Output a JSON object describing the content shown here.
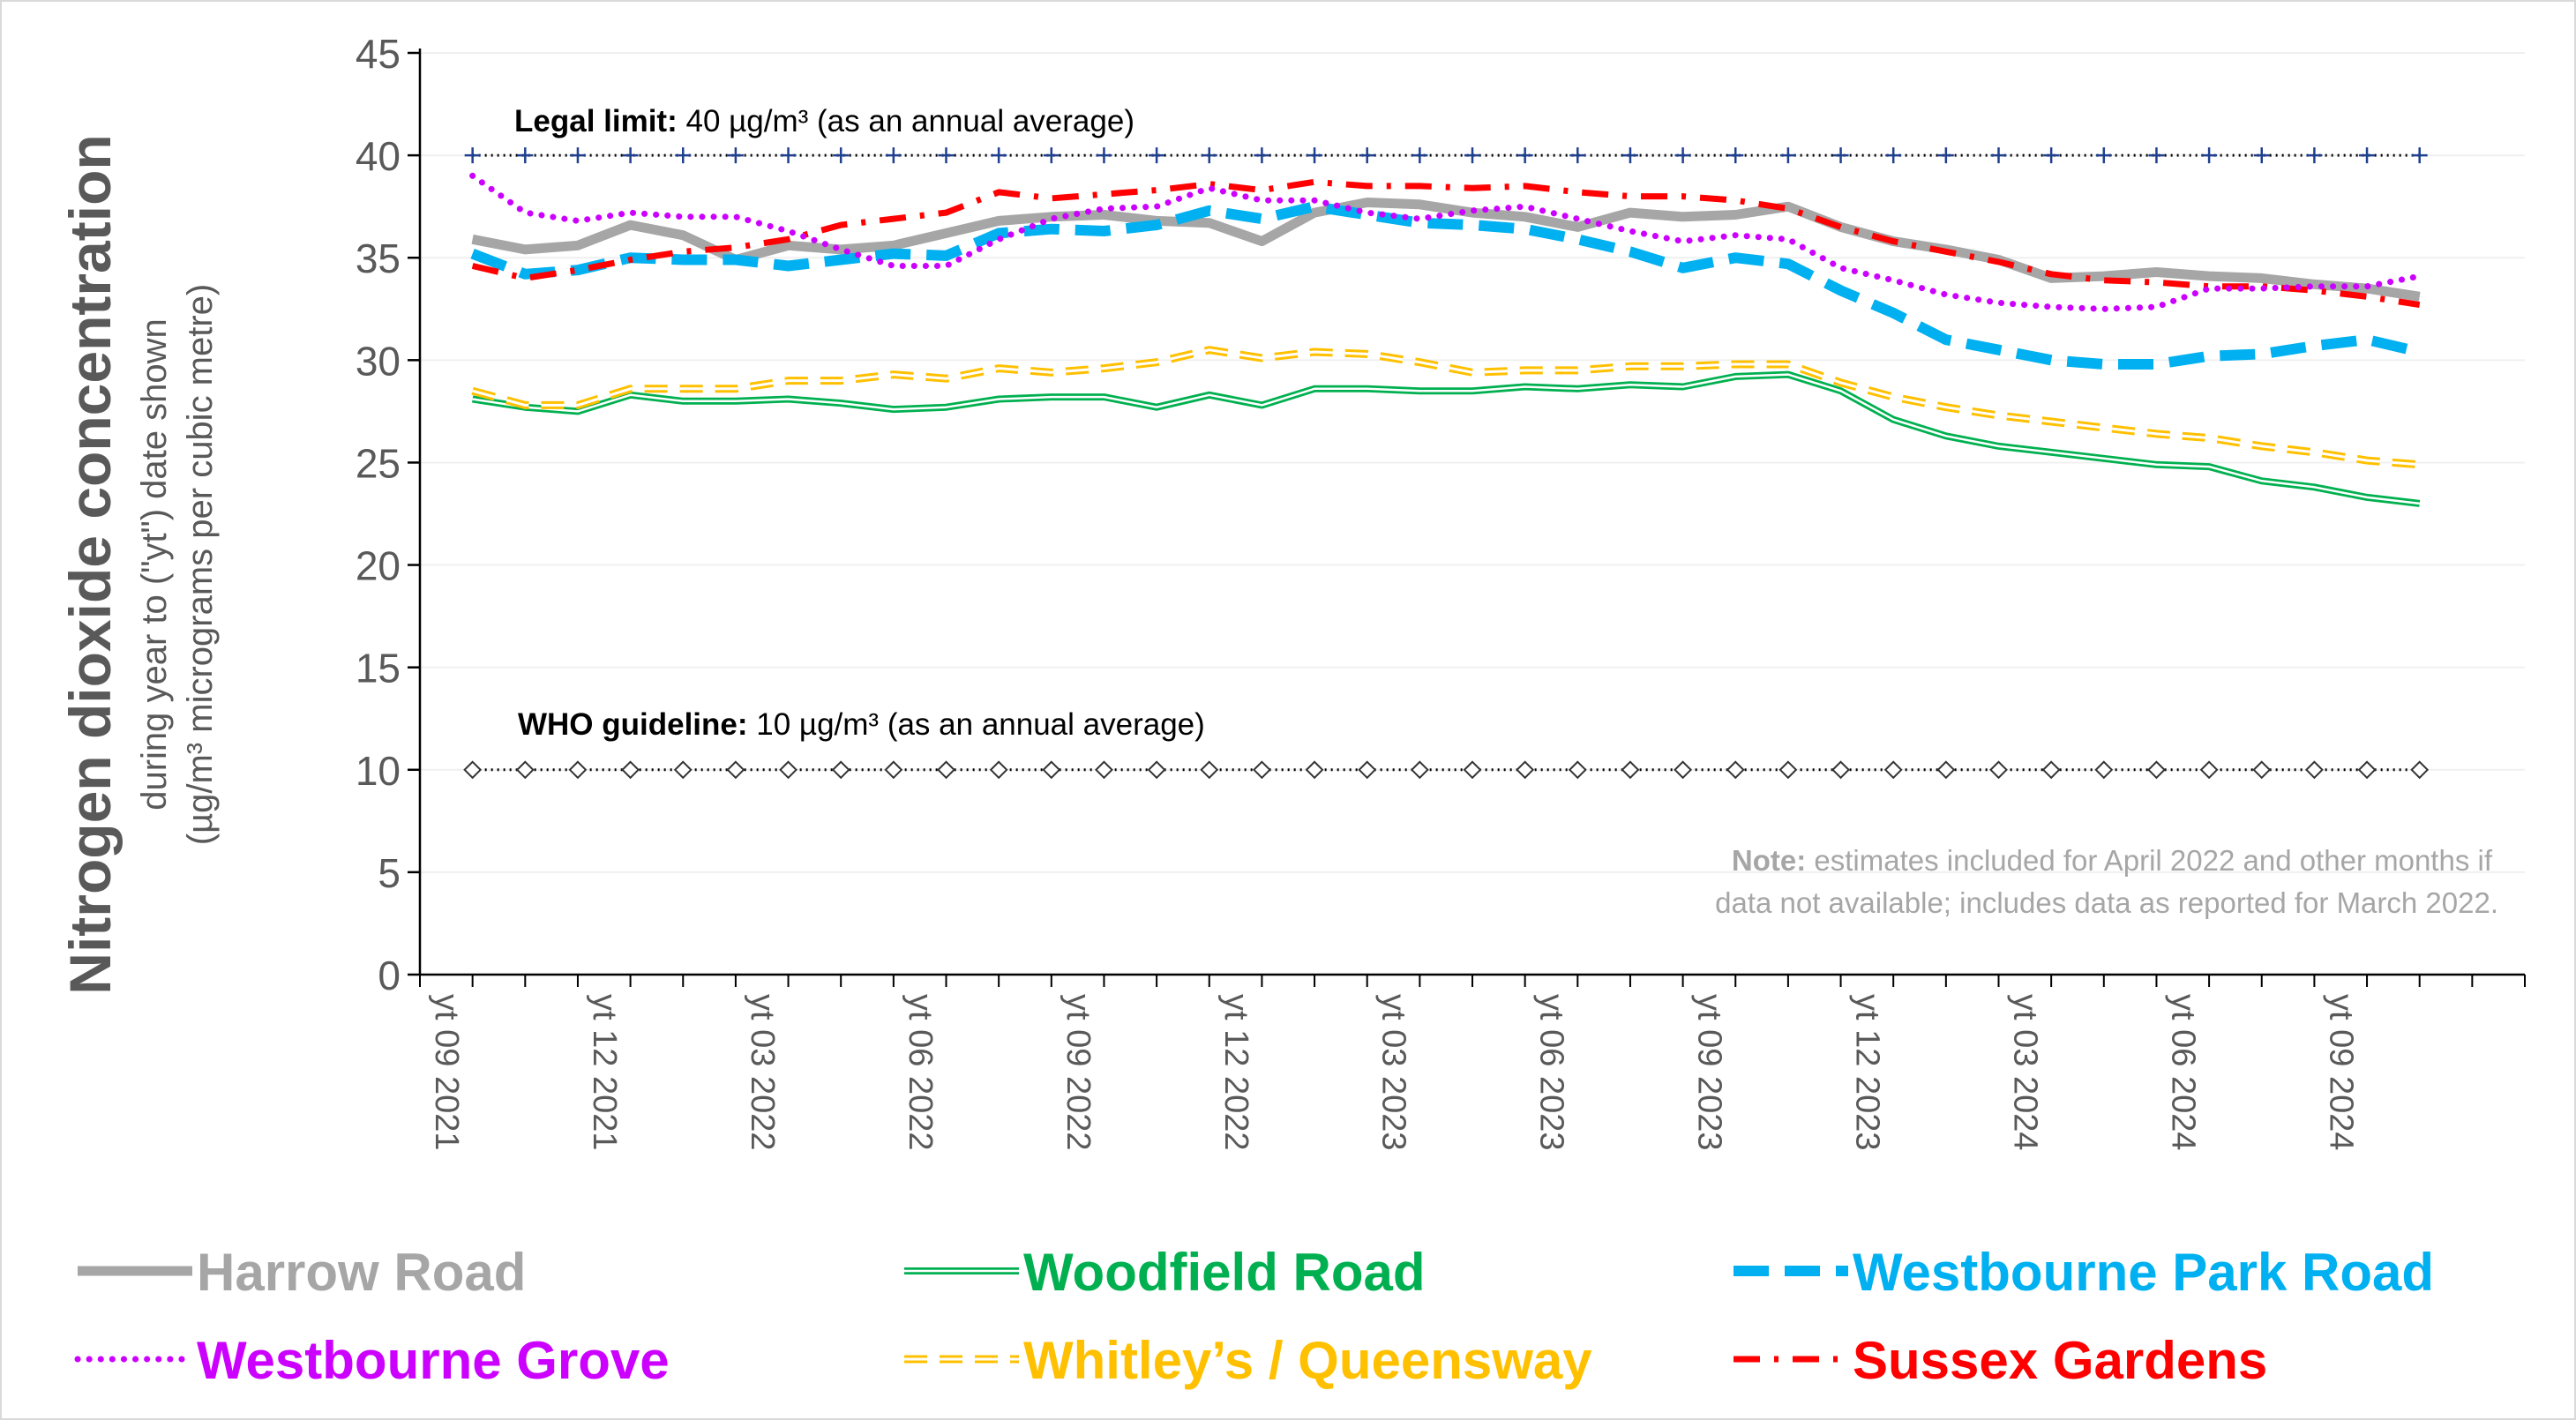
{
  "chart_data": {
    "type": "line",
    "ylabel_main": "Nitrogen dioxide concentration",
    "ylabel_sub1": "during year to (\"yt\") date shown",
    "ylabel_sub2": "(µg/m³ micrograms per cubic metre)",
    "ylim": [
      0,
      45
    ],
    "yticks": [
      0,
      5,
      10,
      15,
      20,
      25,
      30,
      35,
      40,
      45
    ],
    "xlim": [
      "2021-09",
      "2025-01"
    ],
    "x_tick_labels": [
      {
        "x": "2021-09",
        "label": "yt 09 2021"
      },
      {
        "x": "2021-12",
        "label": "yt 12 2021"
      },
      {
        "x": "2022-03",
        "label": "yt 03 2022"
      },
      {
        "x": "2022-06",
        "label": "yt 06 2022"
      },
      {
        "x": "2022-09",
        "label": "yt 09 2022"
      },
      {
        "x": "2022-12",
        "label": "yt 12 2022"
      },
      {
        "x": "2023-03",
        "label": "yt 03 2023"
      },
      {
        "x": "2023-06",
        "label": "yt 06 2023"
      },
      {
        "x": "2023-09",
        "label": "yt 09 2023"
      },
      {
        "x": "2023-12",
        "label": "yt 12 2023"
      },
      {
        "x": "2024-03",
        "label": "yt 03 2024"
      },
      {
        "x": "2024-06",
        "label": "yt 06 2024"
      },
      {
        "x": "2024-09",
        "label": "yt 09 2024"
      }
    ],
    "x": [
      "2021-10",
      "2021-11",
      "2021-12",
      "2022-01",
      "2022-02",
      "2022-03",
      "2022-04",
      "2022-05",
      "2022-06",
      "2022-07",
      "2022-08",
      "2022-09",
      "2022-10",
      "2022-11",
      "2022-12",
      "2023-01",
      "2023-02",
      "2023-03",
      "2023-04",
      "2023-05",
      "2023-06",
      "2023-07",
      "2023-08",
      "2023-09",
      "2023-10",
      "2023-11",
      "2023-12",
      "2024-01",
      "2024-02",
      "2024-03",
      "2024-04",
      "2024-05",
      "2024-06",
      "2024-07",
      "2024-08",
      "2024-09",
      "2024-10",
      "2024-11"
    ],
    "series": [
      {
        "name": "Harrow Road",
        "color": "#a6a6a6",
        "style": "solid-thick",
        "values": [
          35.9,
          35.4,
          35.6,
          36.6,
          36.1,
          34.9,
          35.6,
          35.4,
          35.6,
          36.2,
          36.8,
          37.0,
          37.1,
          36.8,
          36.7,
          35.8,
          37.2,
          37.7,
          37.6,
          37.2,
          37.0,
          36.5,
          37.2,
          37.0,
          37.1,
          37.5,
          36.5,
          35.8,
          35.4,
          34.9,
          34.0,
          34.1,
          34.3,
          34.1,
          34.0,
          33.7,
          33.5,
          33.1
        ]
      },
      {
        "name": "Woodfield Road",
        "color": "#00b050",
        "style": "double",
        "values": [
          28.1,
          27.7,
          27.5,
          28.3,
          28.0,
          28.0,
          28.1,
          27.9,
          27.6,
          27.7,
          28.1,
          28.2,
          28.2,
          27.7,
          28.3,
          27.8,
          28.6,
          28.6,
          28.5,
          28.5,
          28.7,
          28.6,
          28.8,
          28.7,
          29.2,
          29.3,
          28.5,
          27.1,
          26.3,
          25.8,
          25.5,
          25.2,
          24.9,
          24.8,
          24.1,
          23.8,
          23.3,
          23.0
        ]
      },
      {
        "name": "Westbourne Park Road",
        "color": "#00b0f0",
        "style": "long-dash",
        "values": [
          35.2,
          34.2,
          34.4,
          35.0,
          34.9,
          34.9,
          34.6,
          34.9,
          35.2,
          35.1,
          36.2,
          36.4,
          36.3,
          36.6,
          37.3,
          36.9,
          37.5,
          37.1,
          36.7,
          36.6,
          36.4,
          35.9,
          35.3,
          34.5,
          35.0,
          34.7,
          33.4,
          32.3,
          31.0,
          30.5,
          30.0,
          29.8,
          29.8,
          30.2,
          30.3,
          30.7,
          31.0,
          30.4
        ]
      },
      {
        "name": "Westbourne Grove",
        "color": "#cc00ff",
        "style": "dotted",
        "values": [
          39.0,
          37.2,
          36.8,
          37.2,
          37.0,
          37.0,
          36.3,
          35.4,
          34.6,
          34.6,
          35.9,
          36.9,
          37.4,
          37.5,
          38.4,
          37.8,
          37.8,
          37.2,
          36.9,
          37.3,
          37.5,
          36.9,
          36.3,
          35.8,
          36.1,
          35.9,
          34.5,
          33.9,
          33.2,
          32.8,
          32.6,
          32.5,
          32.6,
          33.5,
          33.5,
          33.6,
          33.6,
          34.1
        ]
      },
      {
        "name": "Whitley’s / Queensway",
        "color": "#ffc000",
        "style": "double-dash",
        "values": [
          28.5,
          27.8,
          27.8,
          28.6,
          28.6,
          28.6,
          29.0,
          29.0,
          29.3,
          29.1,
          29.6,
          29.4,
          29.6,
          29.9,
          30.5,
          30.1,
          30.4,
          30.3,
          29.9,
          29.4,
          29.5,
          29.5,
          29.7,
          29.7,
          29.8,
          29.8,
          28.9,
          28.2,
          27.7,
          27.3,
          27.0,
          26.7,
          26.4,
          26.2,
          25.8,
          25.5,
          25.1,
          24.9
        ]
      },
      {
        "name": "Sussex Gardens",
        "color": "#ff0000",
        "style": "dash-dot",
        "values": [
          34.6,
          34.0,
          34.4,
          34.9,
          35.3,
          35.5,
          35.9,
          36.6,
          36.9,
          37.2,
          38.2,
          37.9,
          38.1,
          38.3,
          38.6,
          38.3,
          38.7,
          38.5,
          38.5,
          38.4,
          38.5,
          38.2,
          38.0,
          38.0,
          37.8,
          37.4,
          36.5,
          35.8,
          35.3,
          34.8,
          34.2,
          33.9,
          33.8,
          33.6,
          33.6,
          33.4,
          33.1,
          32.7
        ]
      }
    ],
    "reference_lines": [
      {
        "y": 40,
        "bold": "Legal limit:",
        "text": " 40 µg/m³ (as an annual average)",
        "marker": "plus",
        "color": "#1f3f8f"
      },
      {
        "y": 10,
        "bold": "WHO guideline:",
        "text": " 10 µg/m³ (as an annual average)",
        "marker": "diamond",
        "color": "#333333"
      }
    ],
    "note_bold": "Note:",
    "note_line1": " estimates included for April 2022 and other months if",
    "note_line2": "data not available; includes data as reported for March 2022.",
    "grid": true,
    "legend_placement": "bottom"
  }
}
